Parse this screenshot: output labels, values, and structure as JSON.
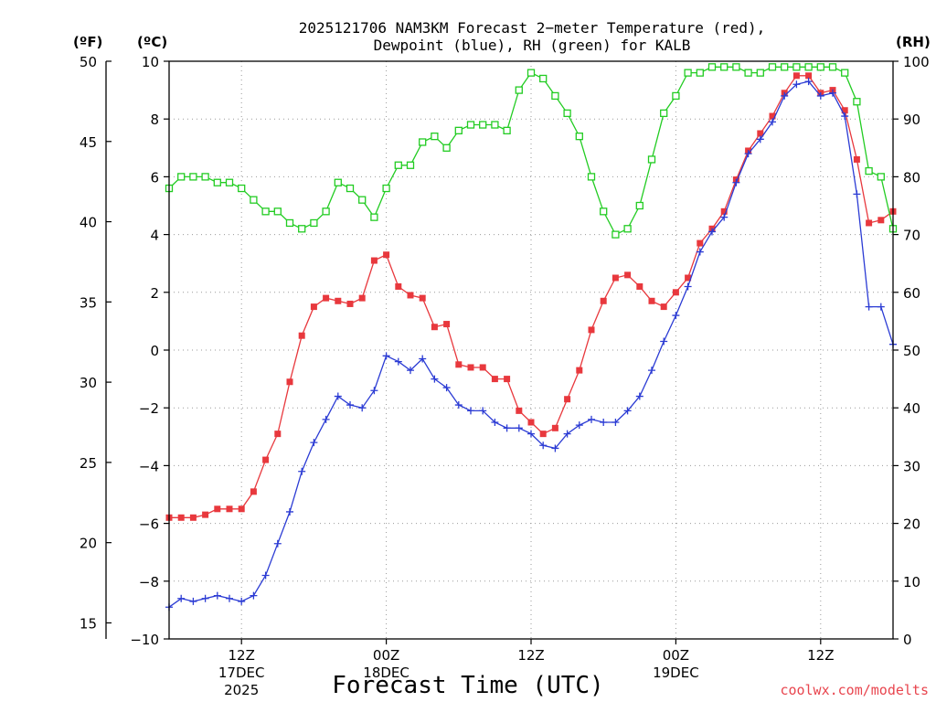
{
  "chart_data": {
    "type": "line",
    "title_line1": "2025121706 NAM3KM Forecast 2−meter Temperature (red),",
    "title_line2": "Dewpoint (blue), RH (green) for KALB",
    "xlabel": "Forecast Time (UTC)",
    "credit": "coolwx.com/modelts",
    "axes": {
      "fahrenheit": {
        "unit_label": "(ºF)",
        "ylim": [
          14.0,
          50.0
        ],
        "ticks": [
          "15",
          "20",
          "25",
          "30",
          "35",
          "40",
          "45",
          "50"
        ]
      },
      "celsius": {
        "unit_label": "(ºC)",
        "ylim": [
          -10,
          10
        ],
        "ticks": [
          "−10",
          "−8",
          "−6",
          "−4",
          "−2",
          "0",
          "2",
          "4",
          "6",
          "8",
          "10"
        ]
      },
      "rh": {
        "unit_label": "(RH)",
        "ylim": [
          0,
          100
        ],
        "ticks": [
          "0",
          "10",
          "20",
          "30",
          "40",
          "50",
          "60",
          "70",
          "80",
          "90",
          "100"
        ]
      }
    },
    "x_range_hours": [
      0,
      60
    ],
    "x_ticks": [
      {
        "hour": 6,
        "label1": "12Z",
        "label2": "17DEC",
        "label3": "2025"
      },
      {
        "hour": 18,
        "label1": "00Z",
        "label2": "18DEC",
        "label3": ""
      },
      {
        "hour": 30,
        "label1": "12Z",
        "label2": "",
        "label3": ""
      },
      {
        "hour": 42,
        "label1": "00Z",
        "label2": "19DEC",
        "label3": ""
      },
      {
        "hour": 54,
        "label1": "12Z",
        "label2": "",
        "label3": ""
      }
    ],
    "x_hours": [
      0,
      1,
      2,
      3,
      4,
      5,
      6,
      7,
      8,
      9,
      10,
      11,
      12,
      13,
      14,
      15,
      16,
      17,
      18,
      19,
      20,
      21,
      22,
      23,
      24,
      25,
      26,
      27,
      28,
      29,
      30,
      31,
      32,
      33,
      34,
      35,
      36,
      37,
      38,
      39,
      40,
      41,
      42,
      43,
      44,
      45,
      46,
      47,
      48,
      49,
      50,
      51,
      52,
      53,
      54,
      55,
      56,
      57,
      58,
      59,
      60
    ],
    "series": [
      {
        "name": "2-meter Temperature",
        "color": "#e8383d",
        "marker": "filled-square",
        "units": "C",
        "values": [
          -5.8,
          -5.8,
          -5.8,
          -5.7,
          -5.5,
          -5.5,
          -5.5,
          -4.9,
          -3.8,
          -2.9,
          -1.1,
          0.5,
          1.5,
          1.8,
          1.7,
          1.6,
          1.8,
          3.1,
          3.3,
          2.2,
          1.9,
          1.8,
          0.8,
          0.9,
          -0.5,
          -0.6,
          -0.6,
          -1.0,
          -1.0,
          -2.1,
          -2.5,
          -2.9,
          -2.7,
          -1.7,
          -0.7,
          0.7,
          1.7,
          2.5,
          2.6,
          2.2,
          1.7,
          1.5,
          2.0,
          2.5,
          3.7,
          4.2,
          4.8,
          5.9,
          6.9,
          7.5,
          8.1,
          8.9,
          9.5,
          9.5,
          8.9,
          9.0,
          8.3,
          6.6,
          4.4,
          4.5,
          4.8
        ]
      },
      {
        "name": "Dewpoint",
        "color": "#2b3bd4",
        "marker": "plus",
        "units": "C",
        "values": [
          -8.9,
          -8.6,
          -8.7,
          -8.6,
          -8.5,
          -8.6,
          -8.7,
          -8.5,
          -7.8,
          -6.7,
          -5.6,
          -4.2,
          -3.2,
          -2.4,
          -1.6,
          -1.9,
          -2.0,
          -1.4,
          -0.2,
          -0.4,
          -0.7,
          -0.3,
          -1.0,
          -1.3,
          -1.9,
          -2.1,
          -2.1,
          -2.5,
          -2.7,
          -2.7,
          -2.9,
          -3.3,
          -3.4,
          -2.9,
          -2.6,
          -2.4,
          -2.5,
          -2.5,
          -2.1,
          -1.6,
          -0.7,
          0.3,
          1.2,
          2.2,
          3.4,
          4.1,
          4.6,
          5.8,
          6.8,
          7.3,
          7.9,
          8.8,
          9.2,
          9.3,
          8.8,
          8.9,
          8.1,
          5.4,
          1.5,
          1.5,
          0.2
        ]
      },
      {
        "name": "RH",
        "color": "#22cc22",
        "marker": "open-square",
        "units": "%",
        "values": [
          78,
          80,
          80,
          80,
          79,
          79,
          78,
          76,
          74,
          74,
          72,
          71,
          72,
          74,
          79,
          78,
          76,
          73,
          78,
          82,
          82,
          86,
          87,
          85,
          88,
          89,
          89,
          89,
          88,
          95,
          98,
          97,
          94,
          91,
          87,
          80,
          74,
          70,
          71,
          75,
          83,
          91,
          94,
          98,
          98,
          99,
          99,
          99,
          98,
          98,
          99,
          99,
          99,
          99,
          99,
          99,
          98,
          93,
          81,
          80,
          71
        ]
      }
    ]
  }
}
